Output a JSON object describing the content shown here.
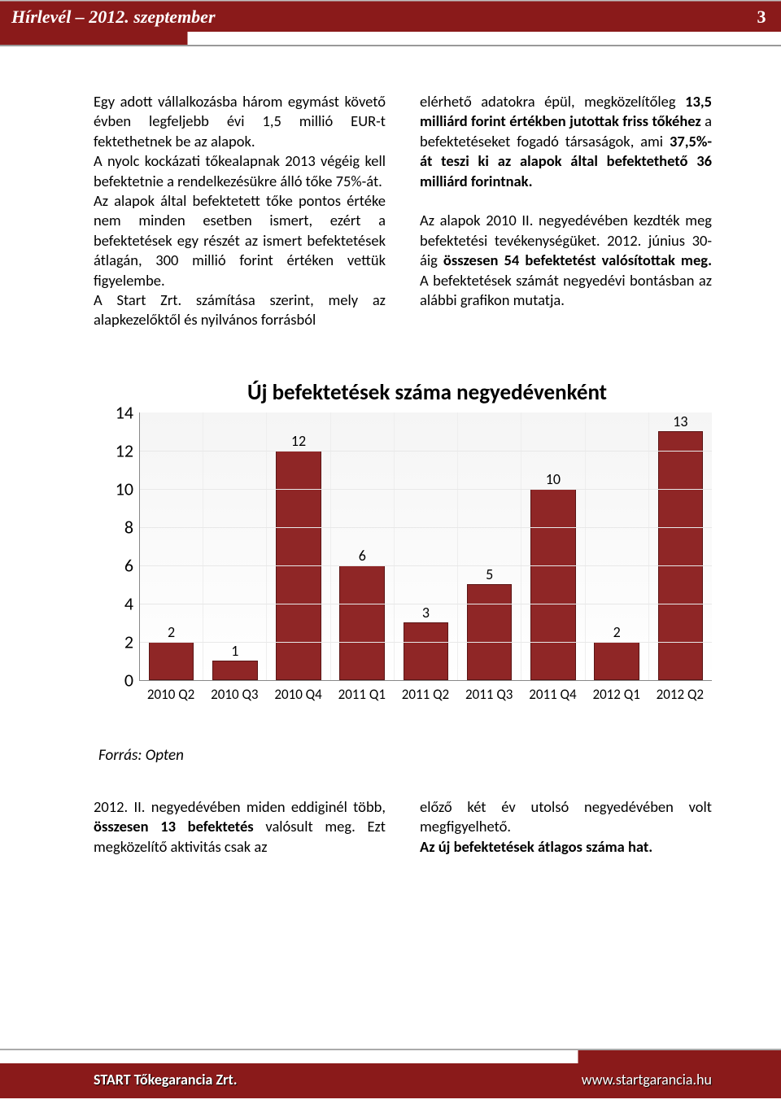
{
  "header": {
    "title": "Hírlevél – 2012. szeptember",
    "page_number": "3"
  },
  "body": {
    "col1_html": "Egy adott vállalkozásba három egymást követő évben legfeljebb évi 1,5 millió EUR-t fektethetnek be az alapok.<br>A nyolc kockázati tőkealapnak 2013 végéig kell befektetnie a rendelkezésükre álló tőke 75%-át.<br>Az alapok által befektetett tőke pontos értéke nem minden esetben ismert, ezért a befektetések egy részét az ismert befektetések átlagán, 300 millió forint értéken vettük figyelembe.<br>A Start Zrt. számítása szerint, mely az alapkezelőktől és nyilvános forrásból",
    "col2_html": "elérhető adatokra épül, megközelítőleg <b>13,5 milliárd forint értékben jutottak friss tőkéhez</b> a befektetéseket fogadó társaságok, ami <b>37,5%-át teszi ki az alapok által befektethető 36 milliárd forintnak.</b><br><br>Az alapok 2010 II. negyedévében kezdték meg befektetési tevékenységüket. 2012. június 30-áig <b>összesen 54 befektetést valósítottak meg.</b> A befektetések számát negyedévi bontásban az alábbi grafikon mutatja.",
    "col3_html": "2012. II. negyedévében miden eddiginél több, <b>összesen 13 befektetés</b> valósult meg. Ezt megközelítő aktivitás csak az",
    "col4_html": "előző két év utolsó negyedévében volt megfigyelhető.<br><b>Az új befektetések átlagos száma hat.</b>"
  },
  "chart": {
    "type": "bar",
    "title": "Új befektetések száma negyedévenként",
    "categories": [
      "2010 Q2",
      "2010 Q3",
      "2010 Q4",
      "2011 Q1",
      "2011 Q2",
      "2011 Q3",
      "2011 Q4",
      "2012 Q1",
      "2012 Q2"
    ],
    "values": [
      2,
      1,
      12,
      6,
      3,
      5,
      10,
      2,
      13
    ],
    "bar_color": "#8f2626",
    "bar_border": "#5a1515",
    "background_color": "#ffffff",
    "grid_color": "#e8e8e8",
    "ylim": [
      0,
      14
    ],
    "ytick_step": 2,
    "title_fontsize": 27,
    "label_fontsize": 22,
    "xlabel_fontsize": 17,
    "value_label_fontsize": 18,
    "bar_width": 0.72
  },
  "source_label": "Forrás: Opten",
  "footer": {
    "left": "START Tőkegarancia Zrt.",
    "right": "www.startgarancia.hu"
  }
}
